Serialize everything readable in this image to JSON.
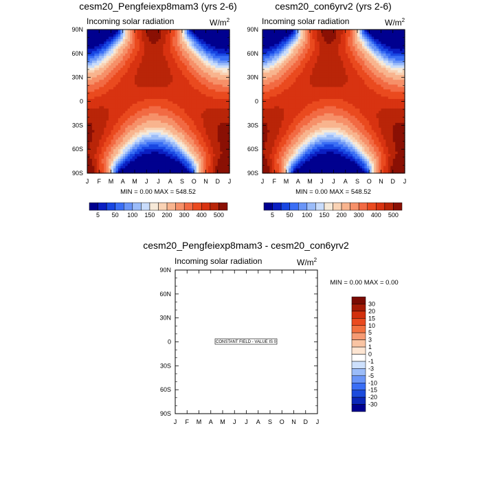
{
  "palette": {
    "solar": [
      "#00008f",
      "#0a1ec2",
      "#1846e2",
      "#3a6ef5",
      "#6a95f7",
      "#9bbcf9",
      "#c9dcfb",
      "#f6e9d8",
      "#f9d2b4",
      "#f8b48e",
      "#f69069",
      "#f26a43",
      "#ea4a1f",
      "#d83311",
      "#b92508",
      "#8a1004"
    ],
    "diff": [
      "#00008f",
      "#0b27b8",
      "#1c4bdc",
      "#3a6ef5",
      "#6a95f7",
      "#9bbcf9",
      "#cde0fc",
      "#ffffff",
      "#fde5d2",
      "#f9c4a3",
      "#f69a73",
      "#f2703f",
      "#ea4a1f",
      "#d2300d",
      "#a41a05",
      "#7a0b03"
    ]
  },
  "months": [
    "J",
    "F",
    "M",
    "A",
    "M",
    "J",
    "J",
    "A",
    "S",
    "O",
    "N",
    "D",
    "J"
  ],
  "lat_labels": [
    "90N",
    "60N",
    "30N",
    "0",
    "30S",
    "60S",
    "90S"
  ],
  "panels": [
    {
      "title": "cesm20_Pengfeiexp8mam3 (yrs 2-6)",
      "variable": "Incoming solar radiation",
      "units_base": "W/m",
      "units_sup": "2",
      "stats": "MIN =   0.00 MAX = 548.52",
      "colorbar_labels": [
        "5",
        "50",
        "100",
        "150",
        "200",
        "300",
        "400",
        "500"
      ]
    },
    {
      "title": "cesm20_con6yrv2 (yrs 2-6)",
      "variable": "Incoming solar radiation",
      "units_base": "W/m",
      "units_sup": "2",
      "stats": "MIN =   0.00 MAX = 548.52",
      "colorbar_labels": [
        "5",
        "50",
        "100",
        "150",
        "200",
        "300",
        "400",
        "500"
      ]
    },
    {
      "title": "cesm20_Pengfeiexp8mam3 - cesm20_con6yrv2",
      "variable": "Incoming solar radiation",
      "units_base": "W/m",
      "units_sup": "2",
      "stats": "MIN =   0.00 MAX =   0.00",
      "note": "CONSTANT FIELD - VALUE IS 0",
      "colorbar_labels": [
        "30",
        "20",
        "15",
        "10",
        "5",
        "3",
        "1",
        "0",
        "-1",
        "-3",
        "-5",
        "-10",
        "-15",
        "-20",
        "-30"
      ]
    }
  ],
  "chart_data": [
    {
      "type": "heatmap",
      "title": "cesm20_Pengfeiexp8mam3 (yrs 2-6)",
      "subtitle": "Incoming solar radiation",
      "units": "W/m2",
      "x": [
        "J",
        "F",
        "M",
        "A",
        "M",
        "J",
        "J",
        "A",
        "S",
        "O",
        "N",
        "D",
        "J"
      ],
      "y": [
        "90N",
        "60N",
        "30N",
        "0",
        "30S",
        "60S",
        "90S"
      ],
      "min": 0.0,
      "max": 548.52,
      "levels": [
        5,
        50,
        100,
        150,
        200,
        300,
        400,
        500
      ]
    },
    {
      "type": "heatmap",
      "title": "cesm20_con6yrv2 (yrs 2-6)",
      "subtitle": "Incoming solar radiation",
      "units": "W/m2",
      "x": [
        "J",
        "F",
        "M",
        "A",
        "M",
        "J",
        "J",
        "A",
        "S",
        "O",
        "N",
        "D",
        "J"
      ],
      "y": [
        "90N",
        "60N",
        "30N",
        "0",
        "30S",
        "60S",
        "90S"
      ],
      "min": 0.0,
      "max": 548.52,
      "levels": [
        5,
        50,
        100,
        150,
        200,
        300,
        400,
        500
      ]
    },
    {
      "type": "heatmap",
      "title": "cesm20_Pengfeiexp8mam3 - cesm20_con6yrv2",
      "subtitle": "Incoming solar radiation",
      "units": "W/m2",
      "x": [
        "J",
        "F",
        "M",
        "A",
        "M",
        "J",
        "J",
        "A",
        "S",
        "O",
        "N",
        "D",
        "J"
      ],
      "y": [
        "90N",
        "60N",
        "30N",
        "0",
        "30S",
        "60S",
        "90S"
      ],
      "min": 0.0,
      "max": 0.0,
      "levels": [
        30,
        20,
        15,
        10,
        5,
        3,
        1,
        0,
        -1,
        -3,
        -5,
        -10,
        -15,
        -20,
        -30
      ],
      "annotation": "CONSTANT FIELD - VALUE IS 0"
    }
  ]
}
